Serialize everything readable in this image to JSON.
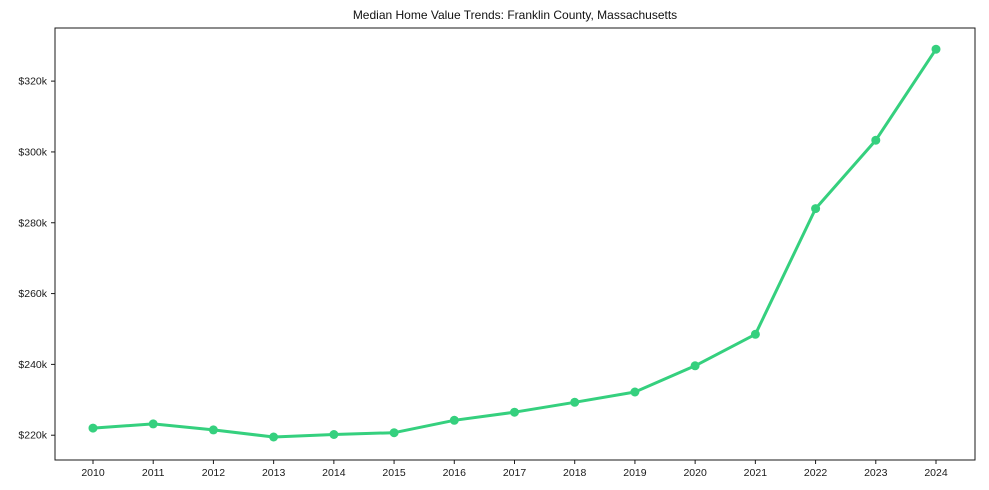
{
  "chart_data": {
    "type": "line",
    "title": "Median Home Value Trends: Franklin County, Massachusetts",
    "xlabel": "",
    "ylabel": "",
    "categories": [
      "2010",
      "2011",
      "2012",
      "2013",
      "2014",
      "2015",
      "2016",
      "2017",
      "2018",
      "2019",
      "2020",
      "2021",
      "2022",
      "2023",
      "2024"
    ],
    "series": [
      {
        "name": "Median Home Value",
        "values": [
          222000,
          223200,
          221500,
          219500,
          220200,
          220700,
          224200,
          226500,
          229300,
          232200,
          239600,
          248500,
          284000,
          303300,
          329000
        ]
      }
    ],
    "yticks": [
      220000,
      240000,
      260000,
      280000,
      300000,
      320000
    ],
    "ytick_labels": [
      "$220k",
      "$240k",
      "$260k",
      "$280k",
      "$300k",
      "$320k"
    ],
    "ylim": [
      213000,
      335000
    ],
    "grid": false,
    "legend_position": "none",
    "line_color": "#35d07e",
    "marker": "circle",
    "marker_radius": 4.5,
    "line_width": 3,
    "axis_color": "#1a1a1a",
    "background_color": "#ffffff"
  }
}
